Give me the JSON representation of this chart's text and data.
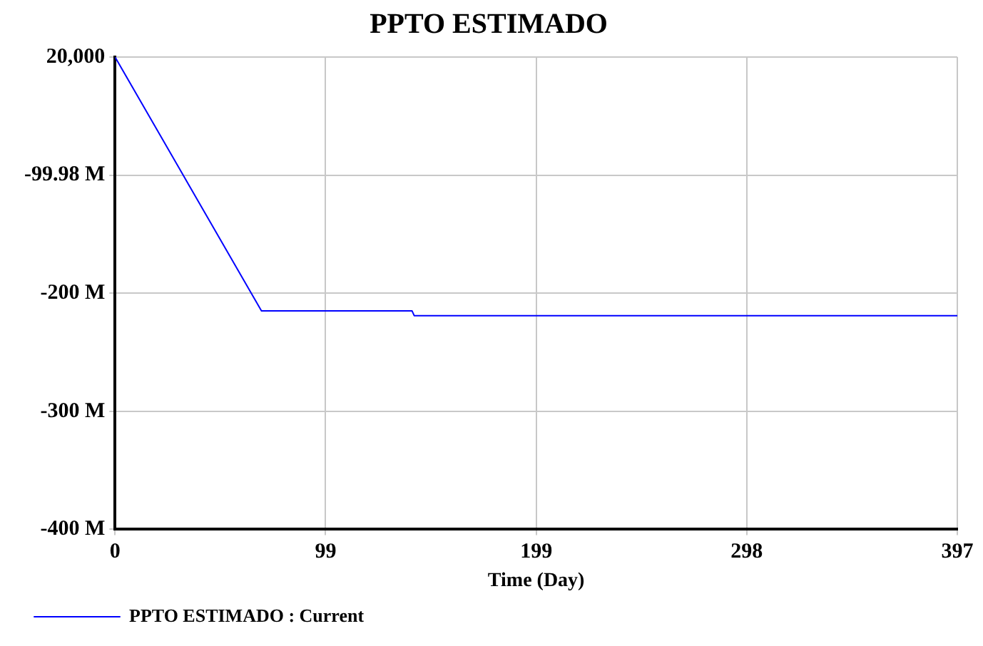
{
  "chart_data": {
    "type": "line",
    "title": "PPTO ESTIMADO",
    "xlabel": "Time (Day)",
    "x": [
      0,
      69,
      140,
      141,
      397
    ],
    "series": [
      {
        "name": "PPTO ESTIMADO : Current",
        "color": "#0000ff",
        "values": [
          20000,
          -215000000,
          -215000000,
          -219000000,
          -219000000
        ]
      }
    ],
    "xlim": [
      0,
      397
    ],
    "xticks": [
      0,
      {
        "value": 99.25,
        "label": "99"
      },
      {
        "value": 198.5,
        "label": "199"
      },
      {
        "value": 297.75,
        "label": "298"
      },
      397
    ],
    "ylim": [
      -399980000,
      20000
    ],
    "yticks": [
      {
        "value": 20000,
        "label": "20,000"
      },
      {
        "value": -99980000,
        "label": "-99.98 M"
      },
      {
        "value": -199980000,
        "label": "-200 M"
      },
      {
        "value": -299980000,
        "label": "-300 M"
      },
      {
        "value": -399980000,
        "label": "-400 M"
      }
    ],
    "grid": true,
    "legend": "bottom left",
    "marker": "none",
    "line_style": "solid"
  }
}
